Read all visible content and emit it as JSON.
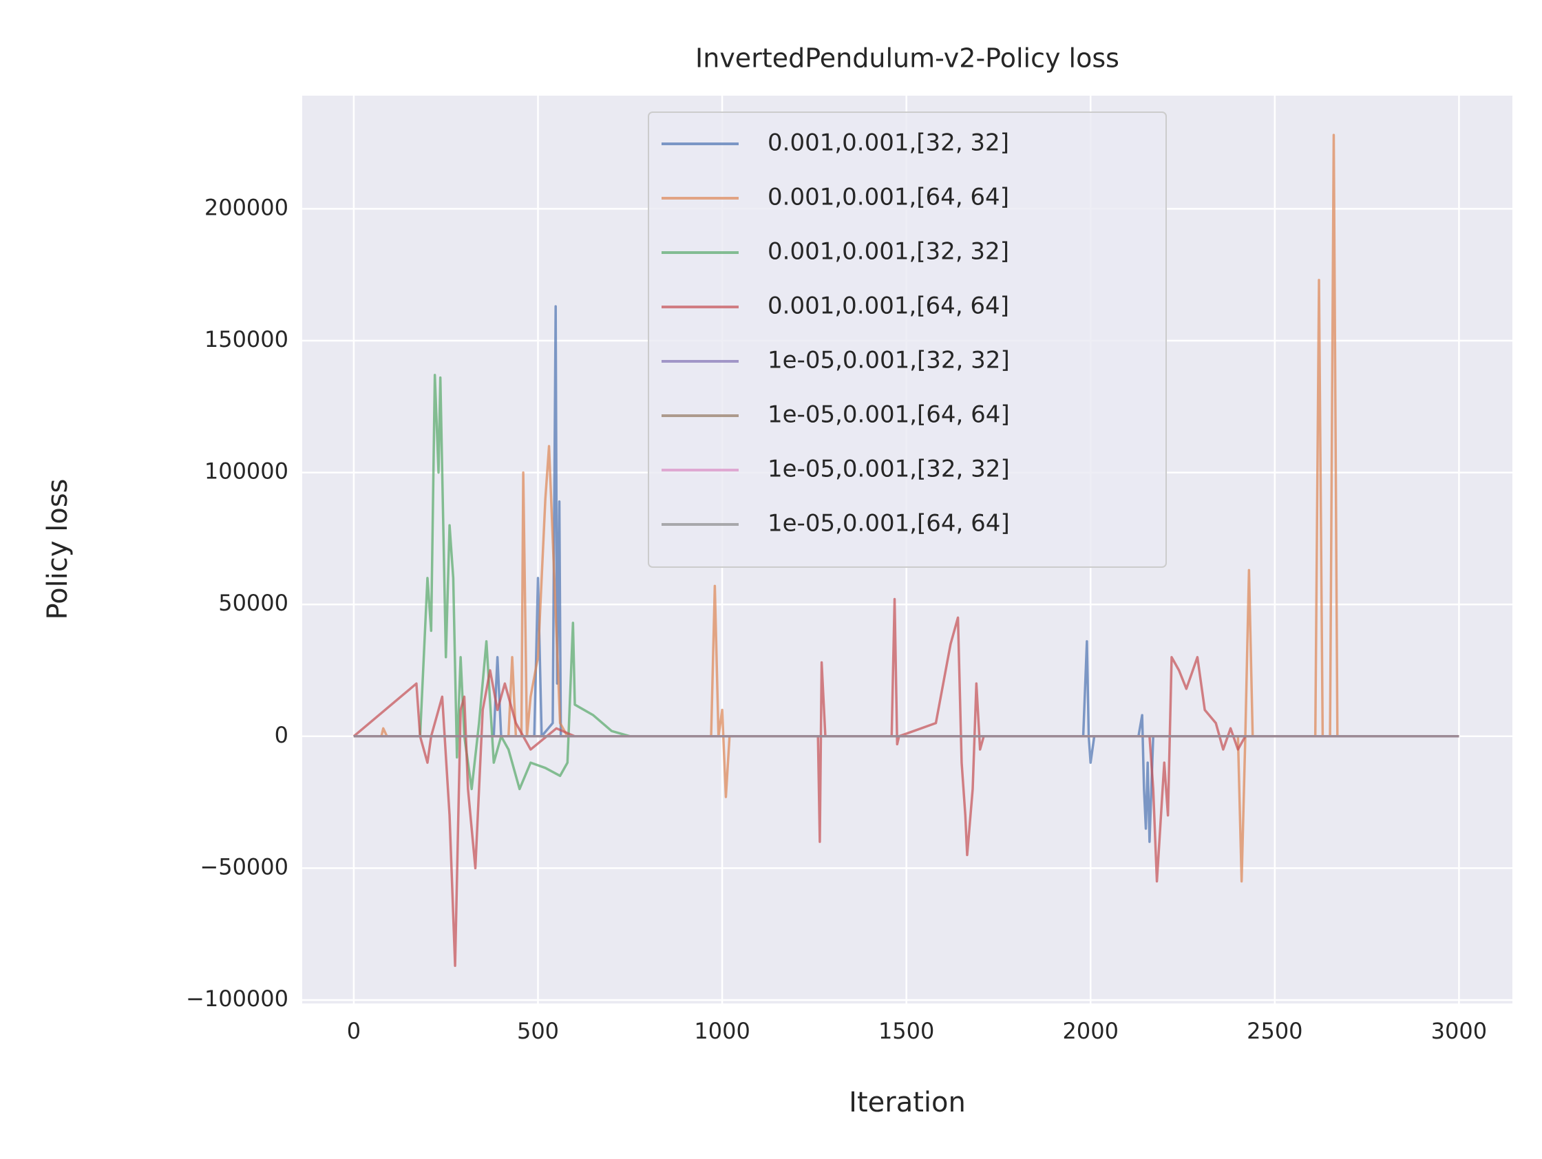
{
  "chart_data": {
    "type": "line",
    "title": "InvertedPendulum-v2-Policy loss",
    "x_label": "Iteration",
    "y_label": "Policy loss",
    "xlim": [
      -140,
      3145
    ],
    "ylim": [
      -101300,
      242900
    ],
    "xticks": [
      0,
      500,
      1000,
      1500,
      2000,
      2500,
      3000
    ],
    "yticks": [
      {
        "value": -100000,
        "label": "−100000"
      },
      {
        "value": -50000,
        "label": "−50000"
      },
      0,
      50000,
      100000,
      150000,
      200000
    ],
    "grid": true,
    "legend": "upper center",
    "alpha": 0.7,
    "series": [
      {
        "name": "0.001,0.001,[32, 32]",
        "color": "#4c72b0",
        "x": [
          0,
          380,
          390,
          400,
          490,
          500,
          510,
          540,
          548,
          552,
          558,
          562,
          570,
          1980,
          1990,
          1995,
          2000,
          2010,
          2130,
          2140,
          2145,
          2150,
          2155,
          2160,
          2170,
          3000
        ],
        "values": [
          0,
          0,
          30000,
          0,
          0,
          60000,
          0,
          5000,
          163000,
          20000,
          89000,
          0,
          0,
          0,
          36000,
          0,
          -10000,
          0,
          0,
          8000,
          -20000,
          -35000,
          -10000,
          -40000,
          0,
          0
        ]
      },
      {
        "name": "0.001,0.001,[64, 64]",
        "color": "#dd8452",
        "x": [
          0,
          75,
          80,
          90,
          420,
          430,
          440,
          455,
          460,
          470,
          480,
          500,
          520,
          530,
          540,
          560,
          580,
          970,
          980,
          990,
          1000,
          1010,
          1020,
          2400,
          2410,
          2420,
          2430,
          2440,
          2610,
          2620,
          2630,
          2650,
          2660,
          2670,
          3000
        ],
        "values": [
          0,
          0,
          3000,
          0,
          0,
          30000,
          0,
          0,
          100000,
          0,
          15000,
          30000,
          90000,
          110000,
          75000,
          5000,
          0,
          0,
          57000,
          0,
          10000,
          -23000,
          0,
          0,
          -55000,
          0,
          63000,
          0,
          0,
          173000,
          0,
          0,
          228000,
          0,
          0
        ]
      },
      {
        "name": "0.001,0.001,[32, 32]",
        "color": "#55a868",
        "x": [
          0,
          180,
          200,
          210,
          220,
          230,
          235,
          250,
          260,
          270,
          280,
          290,
          300,
          320,
          340,
          360,
          380,
          400,
          420,
          450,
          480,
          520,
          560,
          580,
          595,
          600,
          650,
          700,
          750,
          3000
        ],
        "values": [
          0,
          0,
          60000,
          40000,
          137000,
          100000,
          136000,
          30000,
          80000,
          60000,
          -8000,
          30000,
          0,
          -20000,
          5000,
          36000,
          -10000,
          0,
          -5000,
          -20000,
          -10000,
          -12000,
          -15000,
          -10000,
          43000,
          12000,
          8000,
          2000,
          0,
          0
        ]
      },
      {
        "name": "0.001,0.001,[64, 64]",
        "color": "#c44e52",
        "x": [
          0,
          170,
          180,
          200,
          210,
          240,
          260,
          275,
          290,
          300,
          310,
          330,
          350,
          370,
          390,
          410,
          440,
          480,
          550,
          600,
          1260,
          1265,
          1270,
          1280,
          1460,
          1468,
          1475,
          1480,
          1580,
          1620,
          1640,
          1650,
          1660,
          1665,
          1680,
          1690,
          1700,
          1710,
          2160,
          2170,
          2180,
          2200,
          2210,
          2220,
          2240,
          2260,
          2290,
          2310,
          2340,
          2360,
          2380,
          2400,
          2420,
          3000
        ],
        "values": [
          0,
          20000,
          0,
          -10000,
          0,
          15000,
          -30000,
          -87000,
          10000,
          15000,
          -20000,
          -50000,
          10000,
          25000,
          10000,
          20000,
          5000,
          -5000,
          3000,
          0,
          0,
          -40000,
          28000,
          0,
          0,
          52000,
          -3000,
          0,
          5000,
          35000,
          45000,
          -10000,
          -30000,
          -45000,
          -20000,
          20000,
          -5000,
          0,
          0,
          -20000,
          -55000,
          -10000,
          -30000,
          30000,
          25000,
          18000,
          30000,
          10000,
          5000,
          -5000,
          3000,
          -5000,
          0,
          0
        ]
      },
      {
        "name": "1e-05,0.001,[32, 32]",
        "color": "#8172b3",
        "x": [
          0,
          1000,
          2000,
          3000
        ],
        "values": [
          0,
          0,
          0,
          0
        ]
      },
      {
        "name": "1e-05,0.001,[64, 64]",
        "color": "#937860",
        "x": [
          0,
          1000,
          2000,
          3000
        ],
        "values": [
          0,
          0,
          0,
          0
        ]
      },
      {
        "name": "1e-05,0.001,[32, 32]",
        "color": "#da8bc3",
        "x": [
          0,
          1000,
          2000,
          3000
        ],
        "values": [
          0,
          0,
          0,
          0
        ]
      },
      {
        "name": "1e-05,0.001,[64, 64]",
        "color": "#8c8c8c",
        "x": [
          0,
          1000,
          2000,
          3000
        ],
        "values": [
          0,
          0,
          0,
          0
        ]
      }
    ]
  }
}
